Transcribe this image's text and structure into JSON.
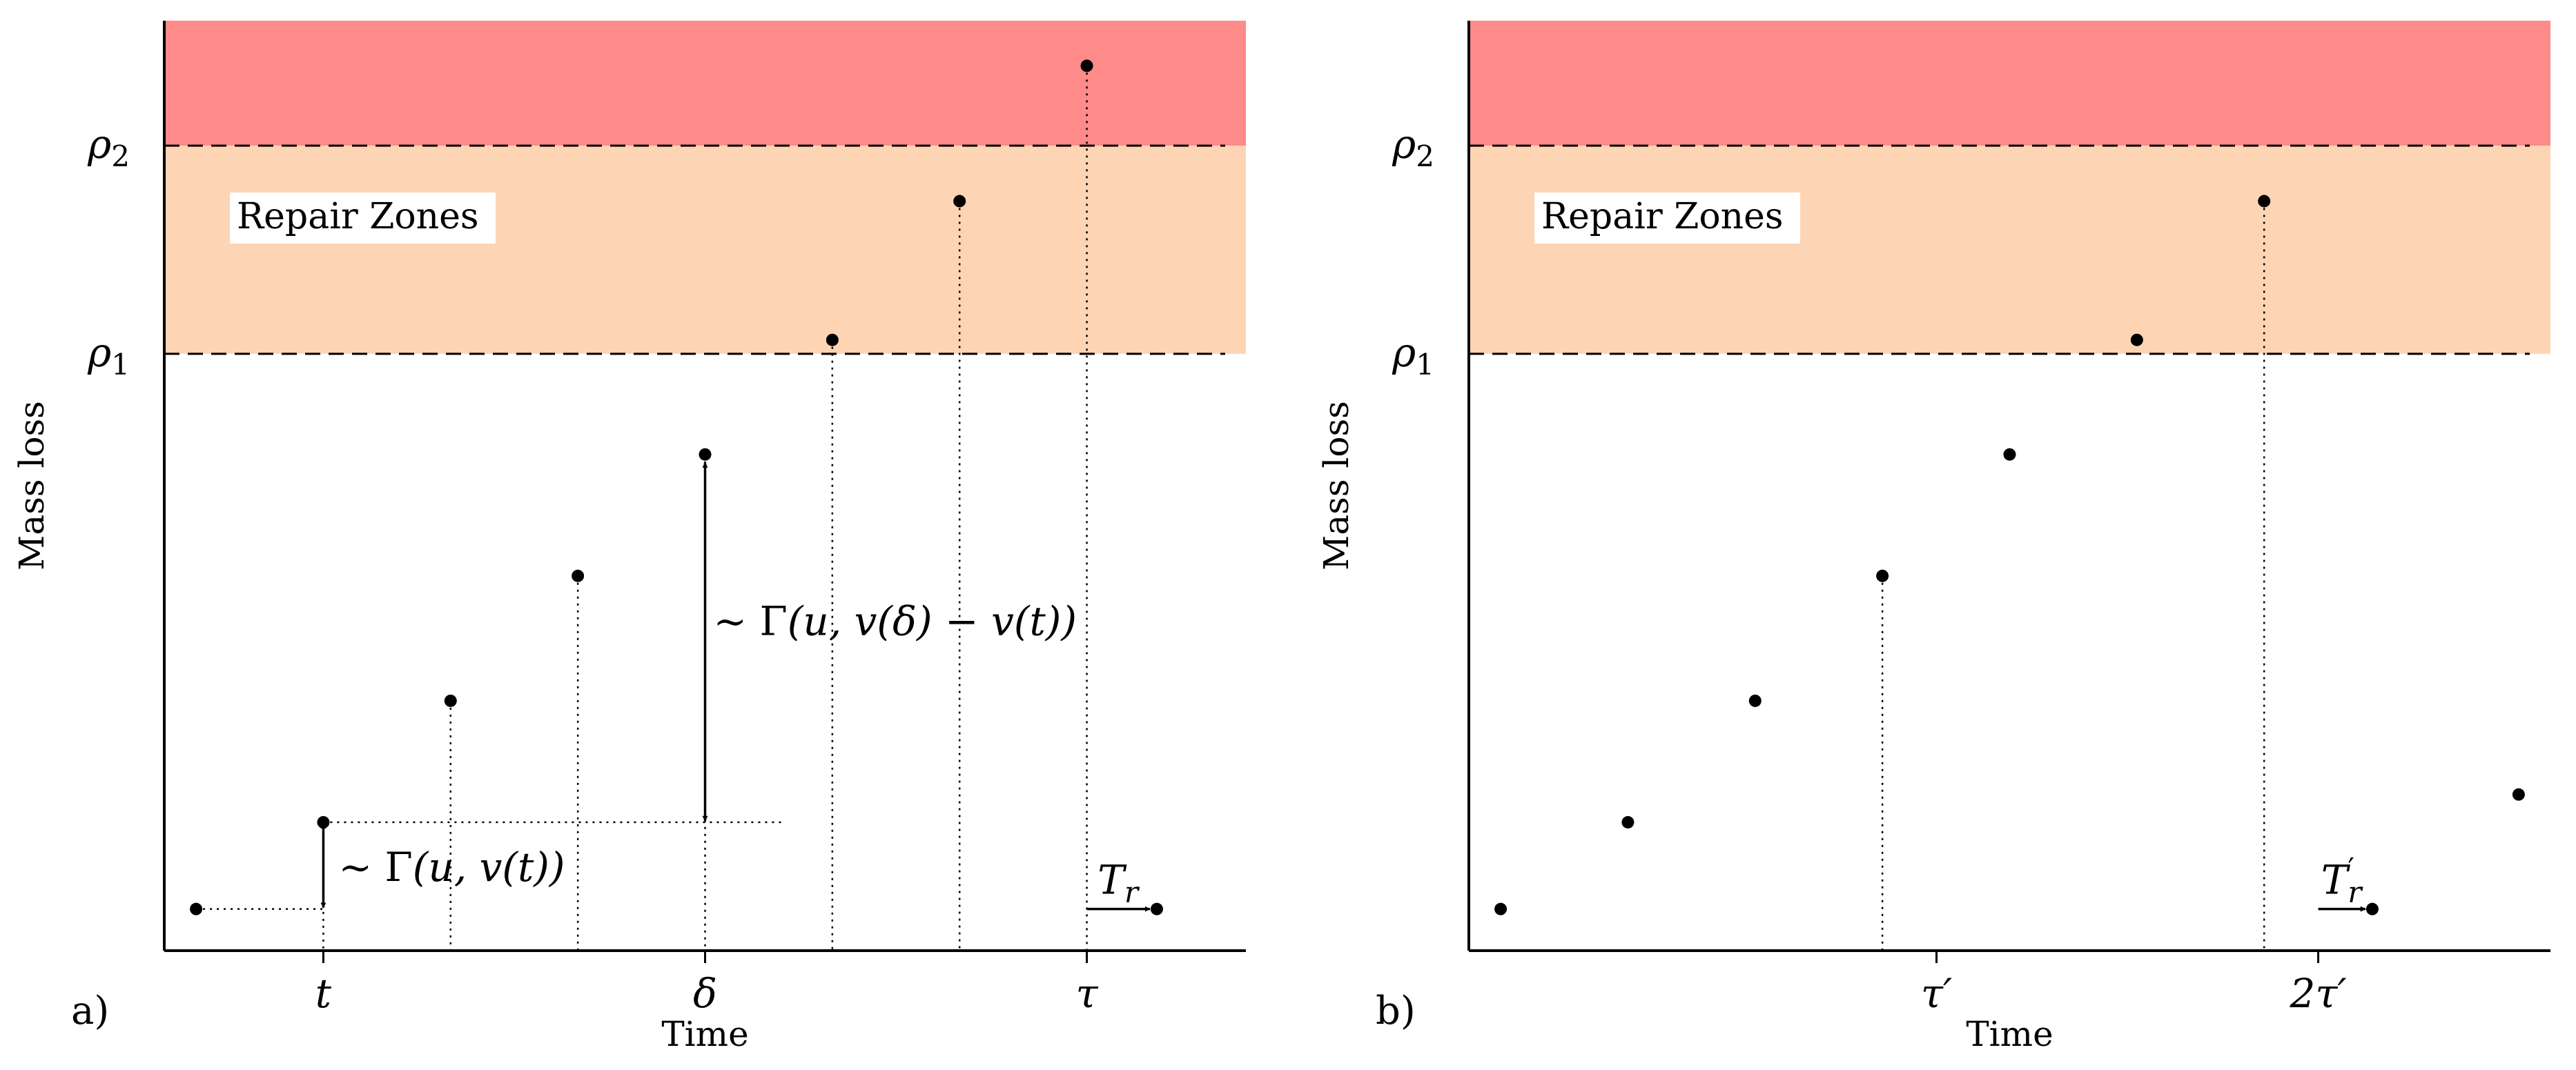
{
  "chart_data": [
    {
      "panel_label": "a)",
      "type": "scatter",
      "xlabel": "Time",
      "ylabel": "Mass loss",
      "xlim": [
        -2.5,
        14.5
      ],
      "ylim": [
        -0.6,
        12.8
      ],
      "thresholds": [
        {
          "name": "ρ1",
          "value": 8.0
        },
        {
          "name": "ρ2",
          "value": 11.0
        }
      ],
      "zones": [
        {
          "from": 8.0,
          "to": 11.0,
          "color": "#fdd5b5",
          "label": "Repair Zones"
        },
        {
          "from": 11.0,
          "to": 12.8,
          "color": "#fe8a8a"
        }
      ],
      "x_ticks": [
        {
          "value": 0,
          "label": "t"
        },
        {
          "value": 6,
          "label": "δ"
        },
        {
          "value": 12,
          "label": "τ"
        }
      ],
      "points": [
        {
          "x": -2,
          "y": 0.0
        },
        {
          "x": 0,
          "y": 1.25
        },
        {
          "x": 2,
          "y": 3.0
        },
        {
          "x": 4,
          "y": 4.8
        },
        {
          "x": 6,
          "y": 6.55
        },
        {
          "x": 8,
          "y": 8.2
        },
        {
          "x": 10,
          "y": 10.2
        },
        {
          "x": 12,
          "y": 12.15
        },
        {
          "x": 13.1,
          "y": 0.0
        }
      ],
      "dotted_stems": [
        0,
        2,
        4,
        6,
        8,
        10,
        12
      ],
      "annotations": {
        "gamma_small": {
          "prefix": "∼ ",
          "func": "Γ",
          "args": "(u, v(t))",
          "from": 0.0,
          "to": 1.25,
          "x": 0
        },
        "gamma_large": {
          "prefix": "∼ ",
          "func": "Γ",
          "args": "(u, v(δ) − v(t))",
          "from": 1.25,
          "to": 6.55,
          "x": 6
        },
        "repair_time": {
          "label": "T",
          "sub": "r",
          "sup": "",
          "from_x": 12,
          "to_x": 13.1,
          "y": 0.0
        }
      }
    },
    {
      "panel_label": "b)",
      "type": "scatter",
      "xlabel": "Time",
      "ylabel": "Mass loss",
      "xlim": [
        -2.5,
        14.5
      ],
      "ylim": [
        -0.6,
        12.8
      ],
      "thresholds": [
        {
          "name": "ρ1",
          "value": 8.0
        },
        {
          "name": "ρ2",
          "value": 11.0
        }
      ],
      "zones": [
        {
          "from": 8.0,
          "to": 11.0,
          "color": "#fdd5b5",
          "label": "Repair Zones"
        },
        {
          "from": 11.0,
          "to": 12.8,
          "color": "#fe8a8a"
        }
      ],
      "x_ticks": [
        {
          "value": 4.85,
          "label": "τ′"
        },
        {
          "value": 10.85,
          "label": "2τ′"
        }
      ],
      "points": [
        {
          "x": -2,
          "y": 0.0
        },
        {
          "x": 0,
          "y": 1.25
        },
        {
          "x": 2,
          "y": 3.0
        },
        {
          "x": 4,
          "y": 4.8
        },
        {
          "x": 6,
          "y": 6.55
        },
        {
          "x": 8,
          "y": 8.2
        },
        {
          "x": 10,
          "y": 10.2
        },
        {
          "x": 11.7,
          "y": 0.0
        },
        {
          "x": 14.0,
          "y": 1.65
        }
      ],
      "dotted_stems": [
        4,
        10
      ],
      "annotations": {
        "repair_time": {
          "label": "T",
          "sub": "r",
          "sup": "′",
          "from_x": 10.85,
          "to_x": 11.7,
          "y": 0.0
        }
      }
    }
  ]
}
